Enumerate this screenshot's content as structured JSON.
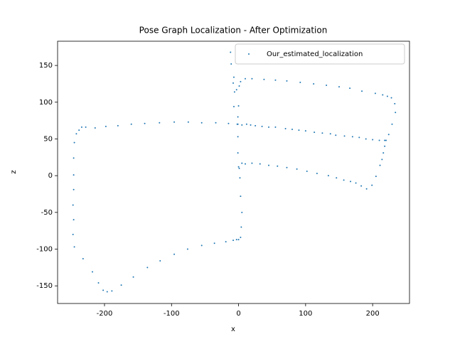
{
  "chart_data": {
    "type": "scatter",
    "title": "Pose Graph Localization - After Optimization",
    "xlabel": "x",
    "ylabel": "z",
    "xlim": [
      -270,
      255
    ],
    "ylim": [
      -174,
      183
    ],
    "xticks": [
      -200,
      -100,
      0,
      100,
      200
    ],
    "yticks": [
      -150,
      -100,
      -50,
      0,
      50,
      100,
      150
    ],
    "legend": "upper right",
    "grid": false,
    "x": [
      -245,
      -242,
      -238,
      -234,
      -228,
      -214,
      -198,
      -180,
      -160,
      -140,
      -118,
      -96,
      -75,
      -55,
      -34,
      -15,
      -2,
      5,
      -246,
      -246,
      -246,
      -247,
      -246,
      -247,
      -245,
      -232,
      -218,
      -209,
      -202,
      -196,
      -189,
      -175,
      -157,
      -136,
      -117,
      -96,
      -76,
      -55,
      -36,
      -19,
      -8,
      -3,
      0,
      3,
      4,
      5,
      3,
      2,
      1,
      0,
      -1,
      -1,
      -1,
      -1,
      0,
      -7,
      -6,
      -8,
      -7,
      -11,
      -12,
      -3,
      1,
      3,
      10,
      20,
      38,
      55,
      72,
      92,
      112,
      131,
      150,
      166,
      184,
      204,
      215,
      222,
      228,
      233,
      234,
      229,
      224,
      220,
      218,
      216,
      12,
      18,
      25,
      35,
      45,
      55,
      70,
      80,
      90,
      100,
      113,
      125,
      137,
      145,
      158,
      170,
      180,
      190,
      200,
      210,
      218,
      5,
      10,
      20,
      32,
      45,
      58,
      72,
      87,
      102,
      117,
      134,
      146,
      157,
      167,
      175,
      183,
      191,
      199,
      205,
      211,
      214
    ],
    "series": [
      {
        "name": "Our_estimated_localization",
        "color": "#1f77b4",
        "values": [
          45,
          57,
          62,
          66,
          66,
          65,
          67,
          68,
          70,
          71,
          72,
          73,
          73,
          72,
          72,
          71,
          70,
          69,
          24,
          1,
          -19,
          -40,
          -60,
          -80,
          -97,
          -113,
          -131,
          -146,
          -156,
          -158,
          -157,
          -149,
          -138,
          -125,
          -116,
          -107,
          -100,
          -95,
          -92,
          -90,
          -88,
          -87,
          -87,
          -84,
          -70,
          -50,
          -28,
          -3,
          10,
          12,
          31,
          53,
          70,
          80,
          95,
          94,
          114,
          126,
          134,
          152,
          168,
          117,
          122,
          128,
          132,
          132,
          131,
          130,
          129,
          127,
          125,
          123,
          121,
          119,
          115,
          112,
          110,
          108,
          106,
          98,
          86,
          70,
          56,
          48,
          40,
          31,
          70,
          69,
          68,
          67,
          66,
          66,
          64,
          63,
          62,
          61,
          59,
          58,
          57,
          55,
          54,
          53,
          52,
          50,
          49,
          48,
          48,
          17,
          16,
          17,
          16,
          14,
          13,
          11,
          9,
          6,
          3,
          0,
          -3,
          -6,
          -8,
          -10,
          -14,
          -18,
          -13,
          -1,
          14,
          22
        ]
      }
    ]
  }
}
